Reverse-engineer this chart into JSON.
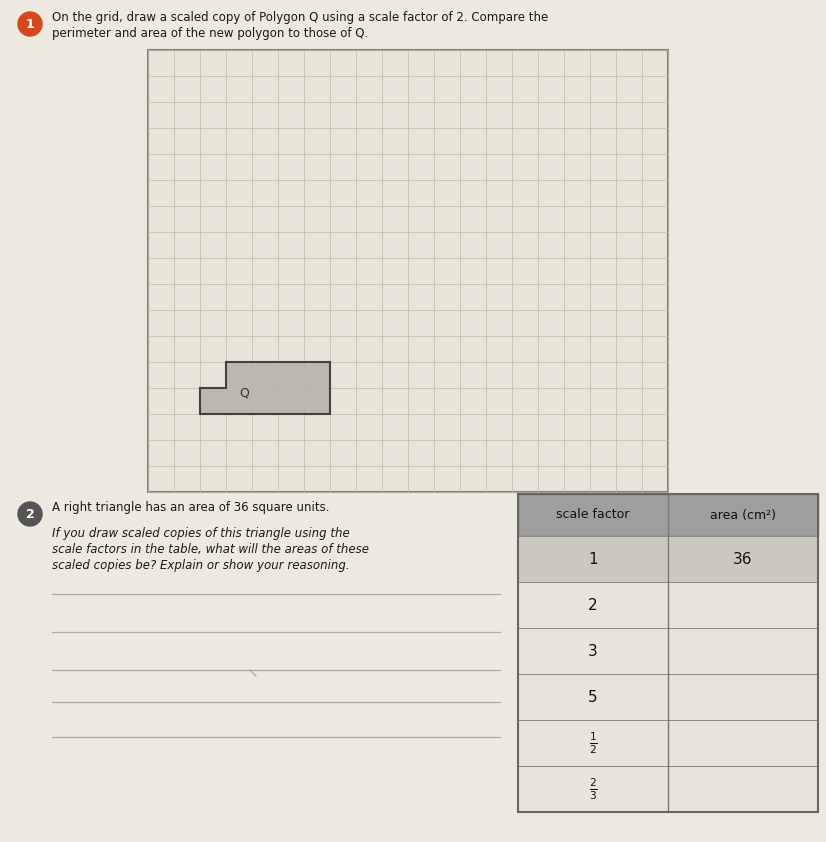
{
  "bg_color": "#ede9e0",
  "grid_color": "#c0b8a8",
  "grid_bg": "#e8e4da",
  "circle1_color": "#d44820",
  "circle2_color": "#555555",
  "grid_cols": 20,
  "grid_rows": 17,
  "polygon_color": "#b8b4ac",
  "polygon_edge": "#333333",
  "table_header_bg": "#9e9e9e",
  "table_row0_bg": "#ccc8c0",
  "table_row_bg": "#e8e4da",
  "problem1_line1": "On the grid, draw a scaled copy of Polygon Q using a scale factor of 2. Compare the",
  "problem1_line2": "perimeter and area of the new polygon to those of Q.",
  "problem2_line1": "A right triangle has an area of 36 square units.",
  "problem2_line2": "If you draw scaled copies of this triangle using the",
  "problem2_line3": "scale factors in the table, what will the areas of these",
  "problem2_line4": "scaled copies be? Explain or show your reasoning.",
  "row_labels": [
    "1",
    "2",
    "3",
    "5"
  ],
  "row_fractions": [
    [
      "1",
      "2"
    ],
    [
      "2",
      "3"
    ]
  ],
  "area_row0": "36"
}
